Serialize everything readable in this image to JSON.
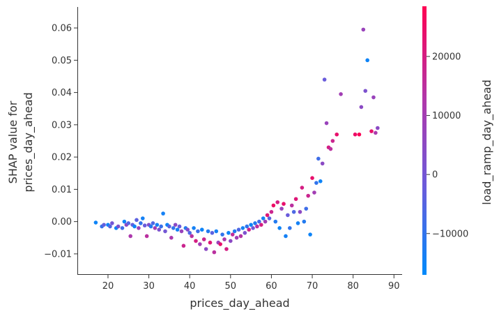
{
  "chart_data": {
    "type": "scatter",
    "xlabel": "prices_day_ahead",
    "ylabel_lines": [
      "SHAP value for",
      "prices_day_ahead"
    ],
    "colorbar_label": "load_ramp_day_ahead",
    "xlim": [
      12.5,
      92
    ],
    "ylim": [
      -0.0165,
      0.0665
    ],
    "xticks": [
      20,
      30,
      40,
      50,
      60,
      70,
      80,
      90
    ],
    "yticks": [
      -0.01,
      0.0,
      0.01,
      0.02,
      0.03,
      0.04,
      0.05,
      0.06
    ],
    "ytick_labels": [
      "−0.01",
      "0.00",
      "0.01",
      "0.02",
      "0.03",
      "0.04",
      "0.05",
      "0.06"
    ],
    "colorbar_range": [
      -17000,
      28500
    ],
    "colorbar_ticks": [
      -10000,
      0,
      10000,
      20000
    ],
    "colorbar_tick_labels": [
      "−10000",
      "0",
      "10000",
      "20000"
    ],
    "colormap": [
      "#008afb",
      "#6b5bdb",
      "#b236a9",
      "#ff0052"
    ],
    "grid": false,
    "points": [
      [
        17.0,
        -0.0003,
        -15000
      ],
      [
        18.5,
        -0.0015,
        -9000
      ],
      [
        19.0,
        -0.001,
        -3000
      ],
      [
        20.0,
        -0.001,
        -15000
      ],
      [
        20.5,
        -0.0015,
        -5000
      ],
      [
        21.0,
        -0.0005,
        0
      ],
      [
        22.0,
        -0.002,
        -15000
      ],
      [
        22.5,
        -0.0015,
        2000
      ],
      [
        23.5,
        -0.002,
        -8000
      ],
      [
        24.0,
        0.0,
        -15000
      ],
      [
        24.5,
        -0.001,
        5000
      ],
      [
        25.0,
        -0.0005,
        -5000
      ],
      [
        25.5,
        -0.0045,
        12000
      ],
      [
        26.0,
        -0.001,
        -3000
      ],
      [
        26.5,
        -0.0015,
        -15000
      ],
      [
        27.0,
        0.0005,
        -4000
      ],
      [
        27.5,
        -0.002,
        8000
      ],
      [
        28.0,
        -0.0005,
        -10000
      ],
      [
        28.5,
        0.001,
        -14000
      ],
      [
        29.0,
        -0.0012,
        -2000
      ],
      [
        29.5,
        -0.0045,
        15000
      ],
      [
        30.0,
        -0.001,
        3000
      ],
      [
        30.5,
        -0.0015,
        -12000
      ],
      [
        31.0,
        -0.0005,
        -6000
      ],
      [
        31.5,
        -0.002,
        10000
      ],
      [
        32.0,
        -0.001,
        -14000
      ],
      [
        32.5,
        -0.0025,
        2000
      ],
      [
        33.0,
        -0.0015,
        -9000
      ],
      [
        33.5,
        0.0025,
        -14000
      ],
      [
        34.0,
        -0.003,
        0
      ],
      [
        34.5,
        -0.001,
        -15000
      ],
      [
        35.0,
        -0.0015,
        -4000
      ],
      [
        35.5,
        -0.005,
        12000
      ],
      [
        36.0,
        -0.002,
        -10000
      ],
      [
        36.5,
        -0.001,
        5000
      ],
      [
        37.0,
        -0.0025,
        -14000
      ],
      [
        37.5,
        -0.0015,
        -2000
      ],
      [
        38.0,
        -0.003,
        8000
      ],
      [
        38.5,
        -0.0075,
        18000
      ],
      [
        39.0,
        -0.002,
        -12000
      ],
      [
        39.5,
        -0.0025,
        3000
      ],
      [
        40.0,
        -0.0035,
        -6000
      ],
      [
        40.5,
        -0.0045,
        15000
      ],
      [
        41.0,
        -0.002,
        -14000
      ],
      [
        41.5,
        -0.006,
        20000
      ],
      [
        42.0,
        -0.003,
        -8000
      ],
      [
        42.5,
        -0.007,
        10000
      ],
      [
        43.0,
        -0.0025,
        -15000
      ],
      [
        43.5,
        -0.0055,
        18000
      ],
      [
        44.0,
        -0.0085,
        5000
      ],
      [
        44.5,
        -0.003,
        -12000
      ],
      [
        45.0,
        -0.0065,
        22000
      ],
      [
        45.5,
        -0.0035,
        -4000
      ],
      [
        46.0,
        -0.0095,
        15000
      ],
      [
        46.5,
        -0.003,
        -14000
      ],
      [
        47.0,
        -0.0065,
        8000
      ],
      [
        47.5,
        -0.007,
        24000
      ],
      [
        48.0,
        -0.004,
        -10000
      ],
      [
        48.5,
        -0.0055,
        12000
      ],
      [
        49.0,
        -0.0085,
        20000
      ],
      [
        49.5,
        -0.0035,
        -15000
      ],
      [
        50.0,
        -0.006,
        5000
      ],
      [
        50.5,
        -0.004,
        16000
      ],
      [
        51.0,
        -0.003,
        -12000
      ],
      [
        51.5,
        -0.005,
        10000
      ],
      [
        52.0,
        -0.0025,
        -6000
      ],
      [
        52.5,
        -0.0045,
        14000
      ],
      [
        53.0,
        -0.002,
        -14000
      ],
      [
        53.5,
        -0.0035,
        2000
      ],
      [
        54.0,
        -0.0015,
        -10000
      ],
      [
        54.5,
        -0.0025,
        18000
      ],
      [
        55.0,
        -0.001,
        -15000
      ],
      [
        55.5,
        -0.002,
        0
      ],
      [
        56.0,
        -0.0005,
        -12000
      ],
      [
        56.5,
        -0.0015,
        15000
      ],
      [
        57.0,
        0.0,
        -8000
      ],
      [
        57.5,
        -0.001,
        20000
      ],
      [
        58.0,
        0.001,
        -14000
      ],
      [
        58.5,
        0.0,
        10000
      ],
      [
        59.0,
        0.002,
        22000
      ],
      [
        59.5,
        0.001,
        -4000
      ],
      [
        60.0,
        0.003,
        18000
      ],
      [
        60.5,
        0.005,
        25000
      ],
      [
        61.0,
        0.0,
        -12000
      ],
      [
        61.5,
        0.006,
        20000
      ],
      [
        62.0,
        -0.002,
        -15000
      ],
      [
        62.5,
        0.004,
        8000
      ],
      [
        63.0,
        0.0055,
        24000
      ],
      [
        63.5,
        -0.0045,
        -14000
      ],
      [
        64.0,
        0.002,
        -2000
      ],
      [
        64.5,
        -0.002,
        -10000
      ],
      [
        65.0,
        0.005,
        15000
      ],
      [
        65.5,
        0.003,
        -6000
      ],
      [
        66.0,
        0.007,
        22000
      ],
      [
        66.5,
        -0.0005,
        -14000
      ],
      [
        67.0,
        0.003,
        5000
      ],
      [
        67.5,
        0.0105,
        20000
      ],
      [
        68.0,
        0.0,
        -12000
      ],
      [
        68.5,
        0.004,
        -8000
      ],
      [
        69.0,
        0.008,
        18000
      ],
      [
        69.5,
        -0.004,
        -15000
      ],
      [
        70.0,
        0.0135,
        24000
      ],
      [
        70.5,
        0.009,
        10000
      ],
      [
        71.0,
        0.012,
        -10000
      ],
      [
        71.5,
        0.0195,
        -8000
      ],
      [
        72.0,
        0.0125,
        -15000
      ],
      [
        72.5,
        0.018,
        5000
      ],
      [
        73.0,
        0.044,
        -2000
      ],
      [
        73.5,
        0.0305,
        8000
      ],
      [
        74.0,
        0.023,
        20000
      ],
      [
        74.5,
        0.0225,
        15000
      ],
      [
        75.0,
        0.025,
        18000
      ],
      [
        76.0,
        0.027,
        24000
      ],
      [
        77.0,
        0.0395,
        10000
      ],
      [
        80.5,
        0.027,
        25000
      ],
      [
        81.5,
        0.027,
        28000
      ],
      [
        82.0,
        0.0355,
        5000
      ],
      [
        82.5,
        0.0595,
        8000
      ],
      [
        83.0,
        0.0405,
        2000
      ],
      [
        83.5,
        0.05,
        -15000
      ],
      [
        84.5,
        0.028,
        24000
      ],
      [
        85.0,
        0.0385,
        8000
      ],
      [
        85.5,
        0.0275,
        12000
      ],
      [
        86.0,
        0.029,
        5000
      ]
    ]
  }
}
